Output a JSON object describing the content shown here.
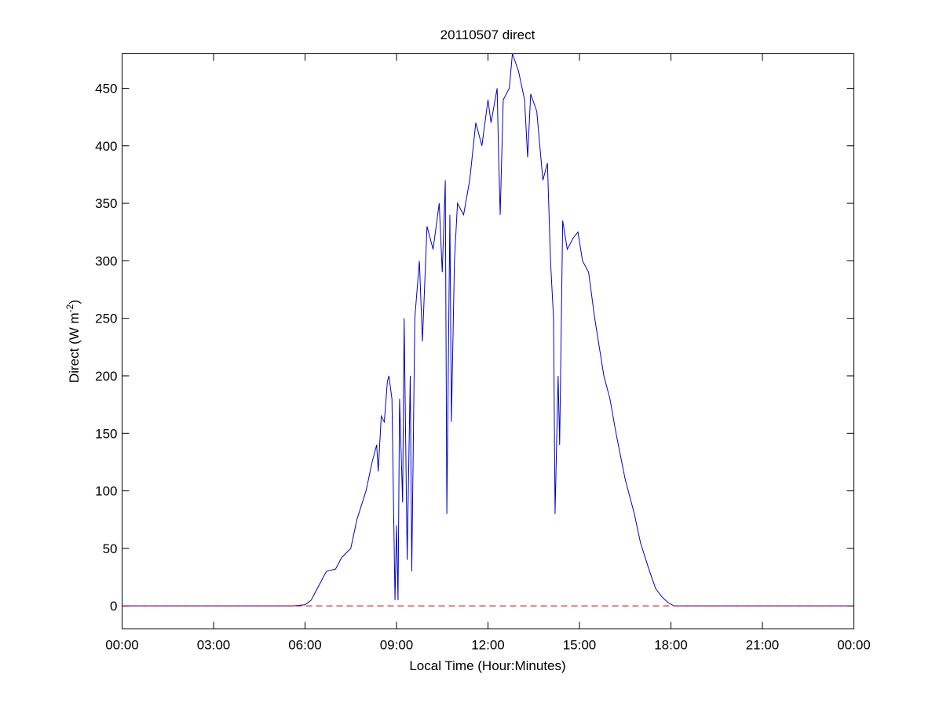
{
  "chart_data": {
    "type": "line",
    "title": "20110507 direct",
    "xlabel": "Local Time (Hour:Minutes)",
    "ylabel": {
      "text": "Direct (W m",
      "superscript": "-2",
      "suffix": ")"
    },
    "xlim": [
      0,
      24
    ],
    "ylim": [
      -20,
      480
    ],
    "xticks": [
      {
        "value": 0,
        "label": "00:00"
      },
      {
        "value": 3,
        "label": "03:00"
      },
      {
        "value": 6,
        "label": "06:00"
      },
      {
        "value": 9,
        "label": "09:00"
      },
      {
        "value": 12,
        "label": "12:00"
      },
      {
        "value": 15,
        "label": "15:00"
      },
      {
        "value": 18,
        "label": "18:00"
      },
      {
        "value": 21,
        "label": "21:00"
      },
      {
        "value": 24,
        "label": "00:00"
      }
    ],
    "yticks": [
      0,
      50,
      100,
      150,
      200,
      250,
      300,
      350,
      400,
      450
    ],
    "grid": false,
    "series": [
      {
        "color": "#0000cc",
        "dash": false,
        "x": [
          0,
          0.6,
          1.5,
          2.4,
          3.3,
          4.2,
          5.0,
          5.6,
          6.0,
          6.2,
          6.3,
          6.5,
          6.7,
          7.0,
          7.2,
          7.5,
          7.7,
          8.0,
          8.2,
          8.35,
          8.4,
          8.5,
          8.6,
          8.7,
          8.75,
          8.85,
          8.95,
          9.0,
          9.05,
          9.1,
          9.2,
          9.25,
          9.35,
          9.45,
          9.5,
          9.6,
          9.75,
          9.85,
          10.0,
          10.2,
          10.4,
          10.5,
          10.6,
          10.65,
          10.75,
          10.8,
          10.9,
          11.0,
          11.2,
          11.4,
          11.6,
          11.8,
          12.0,
          12.1,
          12.3,
          12.35,
          12.4,
          12.5,
          12.7,
          12.8,
          13.0,
          13.2,
          13.3,
          13.4,
          13.6,
          13.8,
          13.95,
          14.05,
          14.15,
          14.2,
          14.3,
          14.35,
          14.45,
          14.6,
          14.8,
          14.95,
          15.1,
          15.3,
          15.5,
          15.8,
          16.0,
          16.2,
          16.5,
          16.8,
          17.0,
          17.3,
          17.5,
          17.7,
          17.9,
          18.1,
          18.3,
          20.0,
          21.4,
          22.5,
          24
        ],
        "values": [
          0,
          0,
          0,
          0,
          0,
          0,
          0,
          0,
          1,
          5,
          10,
          20,
          30,
          32,
          42,
          50,
          75,
          100,
          125,
          140,
          117,
          165,
          160,
          195,
          200,
          180,
          5,
          70,
          5,
          180,
          90,
          250,
          40,
          200,
          30,
          250,
          300,
          230,
          330,
          310,
          350,
          290,
          370,
          80,
          340,
          160,
          300,
          350,
          340,
          370,
          420,
          400,
          440,
          420,
          450,
          390,
          340,
          440,
          450,
          480,
          465,
          440,
          390,
          445,
          430,
          370,
          385,
          300,
          250,
          80,
          200,
          140,
          335,
          310,
          320,
          325,
          300,
          290,
          250,
          200,
          180,
          150,
          110,
          80,
          55,
          30,
          15,
          8,
          3,
          0,
          0,
          0,
          0,
          0,
          0
        ]
      },
      {
        "color": "#cc0000",
        "dash": true,
        "x": [
          0,
          24
        ],
        "values": [
          0,
          0
        ]
      }
    ]
  }
}
